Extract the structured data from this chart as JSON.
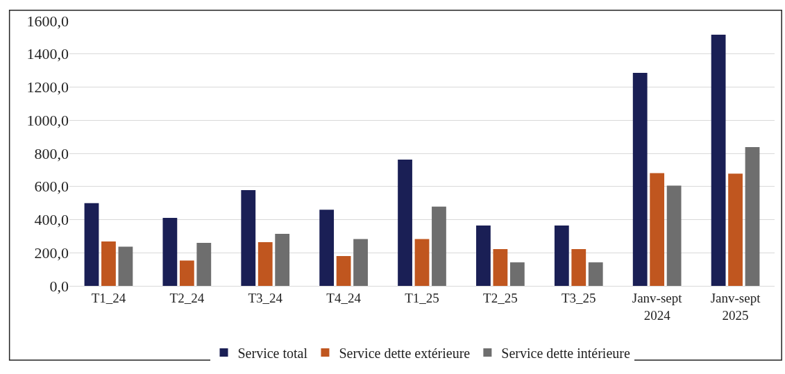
{
  "chart_data": {
    "type": "bar",
    "categories": [
      "T1_24",
      "T2_24",
      "T3_24",
      "T4_24",
      "T1_25",
      "T2_25",
      "T3_25",
      "Janv-sept\n2024",
      "Janv-sept\n2025"
    ],
    "series": [
      {
        "name": "Service total",
        "color": "#1a1f55",
        "values": [
          500,
          410,
          578,
          460,
          762,
          364,
          364,
          1286,
          1516
        ]
      },
      {
        "name": "Service dette extérieure",
        "color": "#c0561f",
        "values": [
          268,
          153,
          264,
          180,
          283,
          222,
          222,
          681,
          678
        ]
      },
      {
        "name": "Service dette intérieure",
        "color": "#6e6e6e",
        "values": [
          237,
          260,
          314,
          283,
          479,
          142,
          142,
          605,
          838
        ]
      }
    ],
    "ylim": [
      0,
      1600
    ],
    "yticks": [
      {
        "value": 0,
        "label": "0,0"
      },
      {
        "value": 200,
        "label": "200,0"
      },
      {
        "value": 400,
        "label": "400,0"
      },
      {
        "value": 600,
        "label": "600,0"
      },
      {
        "value": 800,
        "label": "800,0"
      },
      {
        "value": 1000,
        "label": "1000,0"
      },
      {
        "value": 1200,
        "label": "1200,0"
      },
      {
        "value": 1400,
        "label": "1400,0"
      },
      {
        "value": 1600,
        "label": "1600,0"
      }
    ],
    "grid": "y",
    "legend": "bottom"
  }
}
